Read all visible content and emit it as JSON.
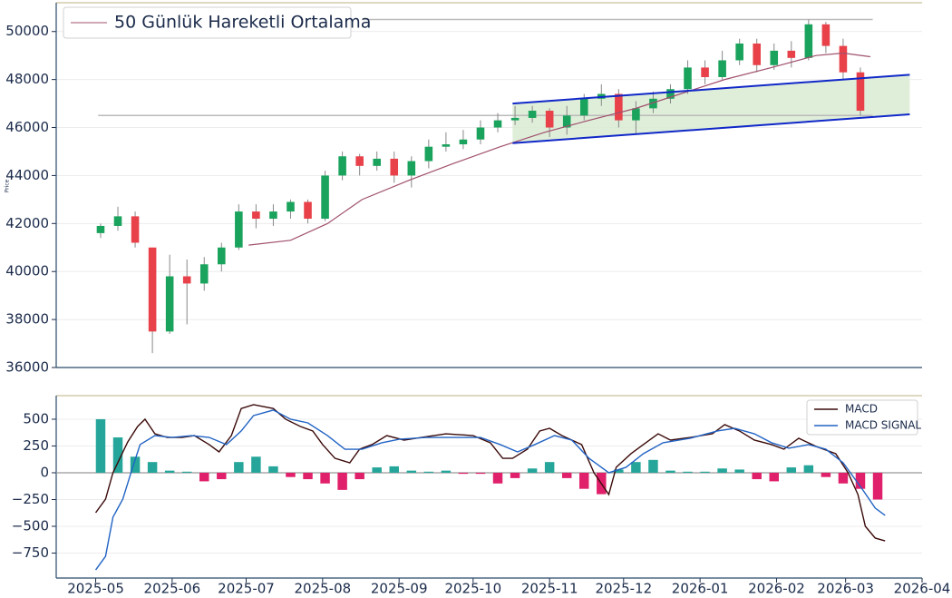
{
  "chart_data": [
    {
      "type": "candlestick",
      "y_label": "Price",
      "x": [
        2,
        9,
        16,
        23,
        30,
        37,
        44,
        51,
        58,
        65,
        72,
        79,
        86,
        93,
        100,
        107,
        114,
        121,
        128,
        135,
        142,
        149,
        156,
        163,
        170,
        177,
        184,
        191,
        198,
        205,
        212,
        219,
        226,
        233,
        240,
        247,
        254,
        261,
        268,
        275,
        282,
        289,
        296,
        303,
        310
      ],
      "open": [
        41600,
        41900,
        42300,
        41000,
        37500,
        39800,
        39500,
        40300,
        41000,
        42500,
        42200,
        42500,
        42900,
        42200,
        44000,
        44800,
        44400,
        44700,
        44000,
        44600,
        45200,
        45300,
        45500,
        46000,
        46300,
        46400,
        46700,
        46000,
        46500,
        47200,
        47400,
        46300,
        46800,
        47200,
        47600,
        48500,
        48100,
        48800,
        49500,
        48600,
        49200,
        48900,
        50300,
        49400,
        48300
      ],
      "high": [
        42000,
        42700,
        42500,
        41000,
        40700,
        40500,
        40600,
        41200,
        42800,
        42800,
        42800,
        43000,
        43000,
        44200,
        45000,
        44900,
        45000,
        45000,
        44800,
        45500,
        45800,
        45900,
        46300,
        46600,
        46900,
        46900,
        46800,
        46900,
        47400,
        47800,
        47600,
        47100,
        47500,
        47800,
        48800,
        48800,
        49200,
        49700,
        49700,
        49500,
        49600,
        50500,
        50400,
        49700,
        48500
      ],
      "low": [
        41400,
        41700,
        41000,
        36600,
        37400,
        37800,
        39200,
        40000,
        40900,
        41800,
        41900,
        42200,
        42000,
        42100,
        43800,
        44000,
        44200,
        43700,
        43500,
        44300,
        45000,
        45100,
        45300,
        45800,
        46100,
        46200,
        45600,
        45700,
        46300,
        46900,
        46000,
        45700,
        46600,
        47000,
        47400,
        47800,
        48000,
        48600,
        48300,
        48400,
        48500,
        48800,
        49100,
        48000,
        46500
      ],
      "close": [
        41900,
        42300,
        41200,
        37500,
        39800,
        39500,
        40300,
        41000,
        42500,
        42200,
        42500,
        42900,
        42200,
        44000,
        44800,
        44400,
        44700,
        44000,
        44600,
        45200,
        45300,
        45500,
        46000,
        46300,
        46400,
        46700,
        46000,
        46500,
        47200,
        47400,
        46300,
        46800,
        47200,
        47600,
        48500,
        48100,
        48800,
        49500,
        48600,
        49200,
        48900,
        50300,
        49400,
        48300,
        46700
      ],
      "up_color": "#1aa35c",
      "down_color": "#e8414a",
      "xlim": [
        -16,
        335
      ],
      "ylim": [
        36000,
        51200
      ],
      "yticks": [
        36000,
        38000,
        40000,
        42000,
        44000,
        46000,
        48000,
        50000
      ],
      "grid": true,
      "legend": "upper left",
      "series": [
        {
          "name": "50 Günlük Hareketli Ortalama",
          "color": "#a0506e",
          "x": [
            62,
            79,
            94,
            108,
            127,
            145,
            164,
            182,
            200,
            219,
            237,
            255,
            274,
            292,
            303,
            314
          ],
          "values": [
            41100,
            41300,
            42000,
            43000,
            43800,
            44500,
            45200,
            45800,
            46300,
            46800,
            47400,
            48000,
            48500,
            49000,
            49100,
            48950
          ]
        }
      ],
      "levels": [
        {
          "value": 50500,
          "x": [
            108,
            315
          ],
          "color": "#bbbbbb"
        },
        {
          "value": 46500,
          "x": [
            1,
            315
          ],
          "color": "#bbbbbb"
        }
      ],
      "channel": {
        "upper": {
          "x": [
            169,
            330
          ],
          "values": [
            47000,
            48200
          ]
        },
        "lower": {
          "x": [
            169,
            330
          ],
          "values": [
            45350,
            46550
          ]
        },
        "color": "#1028c8",
        "fill": "#d9ebd2"
      }
    },
    {
      "type": "macd",
      "xlim": [
        -16,
        335
      ],
      "xticks": [
        {
          "value": 0,
          "label": "2025-05"
        },
        {
          "value": 31,
          "label": "2025-06"
        },
        {
          "value": 61,
          "label": "2025-07"
        },
        {
          "value": 92,
          "label": "2025-08"
        },
        {
          "value": 123,
          "label": "2025-09"
        },
        {
          "value": 153,
          "label": "2025-10"
        },
        {
          "value": 184,
          "label": "2025-11"
        },
        {
          "value": 214,
          "label": "2025-12"
        },
        {
          "value": 245,
          "label": "2026-01"
        },
        {
          "value": 276,
          "label": "2026-02"
        },
        {
          "value": 304,
          "label": "2026-03"
        },
        {
          "value": 335,
          "label": "2026-04"
        }
      ],
      "ylim": [
        -983,
        720
      ],
      "yticks": [
        {
          "value": -750,
          "label": "−750"
        },
        {
          "value": -500,
          "label": "−500"
        },
        {
          "value": -250,
          "label": "−250"
        },
        0,
        250,
        500
      ],
      "grid": true,
      "legend": "upper right",
      "series": [
        {
          "name": "MACD",
          "color": "#3b0a0a",
          "x": [
            0,
            4,
            7,
            13,
            17,
            20,
            24,
            29,
            35,
            40,
            46,
            50,
            55,
            59,
            64,
            72,
            77,
            83,
            88,
            92,
            97,
            103,
            107,
            112,
            118,
            125,
            132,
            142,
            153,
            160,
            165,
            169,
            175,
            180,
            184,
            189,
            197,
            202,
            206,
            208,
            211,
            217,
            222,
            228,
            233,
            241,
            250,
            255,
            261,
            267,
            274,
            279,
            285,
            292,
            300,
            305,
            309,
            312,
            316,
            320
          ],
          "values": [
            -373,
            -246,
            0,
            288,
            432,
            500,
            364,
            330,
            330,
            347,
            263,
            195,
            347,
            600,
            636,
            600,
            500,
            432,
            390,
            263,
            135,
            93,
            220,
            263,
            347,
            305,
            330,
            364,
            347,
            280,
            135,
            135,
            220,
            390,
            415,
            347,
            263,
            0,
            -136,
            -203,
            51,
            178,
            263,
            364,
            305,
            330,
            364,
            449,
            390,
            305,
            263,
            220,
            322,
            246,
            178,
            0,
            -203,
            -500,
            -610,
            -636
          ]
        },
        {
          "name": "MACD SIGNAL",
          "color": "#2163c4",
          "x": [
            0,
            4,
            7,
            11,
            15,
            18,
            24,
            31,
            39,
            46,
            53,
            59,
            64,
            72,
            79,
            86,
            94,
            101,
            108,
            116,
            123,
            134,
            145,
            156,
            164,
            171,
            178,
            186,
            193,
            200,
            208,
            215,
            222,
            230,
            241,
            252,
            259,
            267,
            274,
            281,
            289,
            296,
            303,
            311,
            316,
            320
          ],
          "values": [
            -907,
            -780,
            -415,
            -246,
            51,
            263,
            347,
            330,
            347,
            330,
            263,
            390,
            534,
            585,
            500,
            466,
            347,
            220,
            220,
            280,
            313,
            330,
            330,
            330,
            263,
            195,
            263,
            347,
            305,
            135,
            0,
            51,
            178,
            280,
            322,
            390,
            415,
            364,
            280,
            229,
            263,
            220,
            93,
            -161,
            -330,
            -398
          ]
        }
      ],
      "histogram": {
        "up_color": "#26a69a",
        "down_color": "#e0206a",
        "x": [
          2,
          9,
          16,
          23,
          30,
          37,
          44,
          51,
          58,
          65,
          72,
          79,
          86,
          93,
          100,
          107,
          114,
          121,
          128,
          135,
          142,
          149,
          156,
          163,
          170,
          177,
          184,
          191,
          198,
          205,
          212,
          219,
          226,
          233,
          240,
          247,
          254,
          261,
          268,
          275,
          282,
          289,
          296,
          303,
          310,
          317
        ],
        "values": [
          500,
          330,
          150,
          100,
          20,
          10,
          -80,
          -60,
          100,
          150,
          60,
          -40,
          -60,
          -100,
          -160,
          -60,
          50,
          60,
          20,
          10,
          20,
          -10,
          -10,
          -100,
          -50,
          40,
          100,
          -50,
          -150,
          -200,
          30,
          100,
          120,
          20,
          10,
          10,
          40,
          30,
          -60,
          -80,
          50,
          70,
          -40,
          -100,
          -150,
          -250
        ]
      }
    }
  ]
}
